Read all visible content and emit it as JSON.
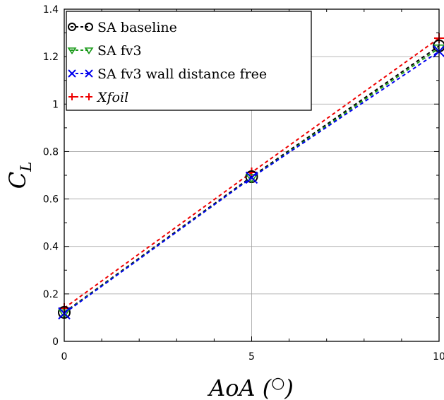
{
  "chart_data": {
    "type": "line",
    "xlabel": "AoA (°)",
    "ylabel": "C_L",
    "x_ticks": [
      "0",
      "5",
      "10"
    ],
    "y_ticks": [
      "0",
      "0.2",
      "0.4",
      "0.6",
      "0.8",
      "1",
      "1.2",
      "1.4"
    ],
    "xlim": [
      0,
      10
    ],
    "ylim": [
      0,
      1.4
    ],
    "grid": true,
    "legend_position": "top-left",
    "x": [
      0,
      5,
      10
    ],
    "series": [
      {
        "name": "SA baseline",
        "values": [
          0.122,
          0.694,
          1.245
        ],
        "color": "#000000",
        "marker": "circle",
        "line": "dashed"
      },
      {
        "name": "SA fv3",
        "values": [
          0.12,
          0.69,
          1.236
        ],
        "color": "#1a9a1a",
        "marker": "triangle-down",
        "line": "dashed"
      },
      {
        "name": "SA fv3 wall distance free",
        "values": [
          0.118,
          0.69,
          1.222
        ],
        "color": "#0000ee",
        "marker": "x",
        "line": "dashed"
      },
      {
        "name": "Xfoil",
        "values": [
          0.14,
          0.712,
          1.278
        ],
        "color": "#ee0000",
        "marker": "plus",
        "line": "dashed",
        "italic": true
      }
    ]
  }
}
